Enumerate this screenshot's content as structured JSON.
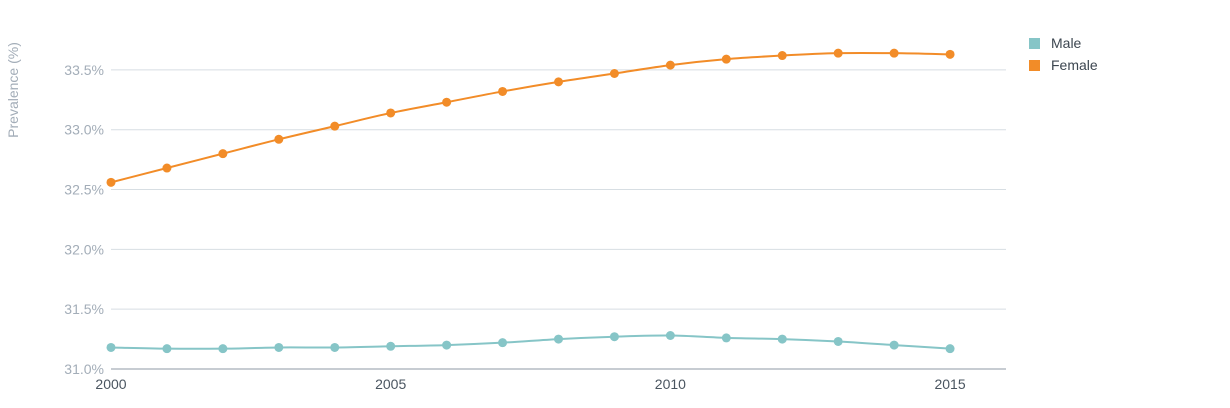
{
  "chart_data": {
    "type": "line",
    "title": "",
    "xlabel": "",
    "ylabel": "Prevalence (%)",
    "x": [
      2000,
      2001,
      2002,
      2003,
      2004,
      2005,
      2006,
      2007,
      2008,
      2009,
      2010,
      2011,
      2012,
      2013,
      2014,
      2015
    ],
    "xlim": [
      2000,
      2016
    ],
    "x_ticks": [
      2000,
      2005,
      2010,
      2015
    ],
    "x_tick_labels": [
      "2000",
      "2005",
      "2010",
      "2015"
    ],
    "ylim": [
      31.0,
      33.75
    ],
    "y_ticks": [
      31.0,
      31.5,
      32.0,
      32.5,
      33.0,
      33.5
    ],
    "y_tick_labels": [
      "31.0%",
      "31.5%",
      "32.0%",
      "32.5%",
      "33.0%",
      "33.5%"
    ],
    "grid": true,
    "legend_position": "top-right",
    "series": [
      {
        "name": "Male",
        "color": "#86c5c7",
        "values": [
          31.18,
          31.17,
          31.17,
          31.18,
          31.18,
          31.19,
          31.2,
          31.22,
          31.25,
          31.27,
          31.28,
          31.26,
          31.25,
          31.23,
          31.2,
          31.17
        ]
      },
      {
        "name": "Female",
        "color": "#f28c28",
        "values": [
          32.56,
          32.68,
          32.8,
          32.92,
          33.03,
          33.14,
          33.23,
          33.32,
          33.4,
          33.47,
          33.54,
          33.59,
          33.62,
          33.64,
          33.64,
          33.63
        ]
      }
    ]
  }
}
